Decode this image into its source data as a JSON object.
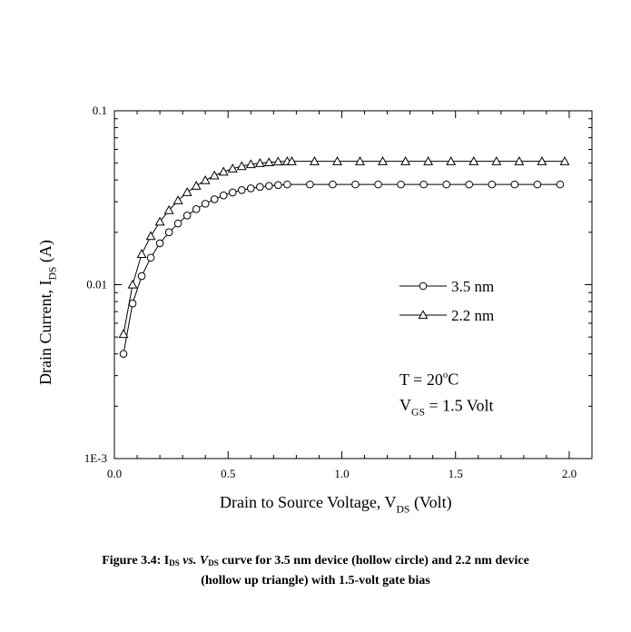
{
  "chart_data": {
    "type": "line",
    "title": "",
    "xlabel": {
      "main": "Drain to Source Voltage, V",
      "sub": "DS",
      "tail": " (Volt)"
    },
    "ylabel": {
      "main": "Drain Current, I",
      "sub": "DS",
      "tail": " (A)"
    },
    "xlim": [
      0,
      2.1
    ],
    "ylim": [
      0.001,
      0.1
    ],
    "yscale": "log",
    "x_ticks": [
      "0.0",
      "0.5",
      "1.0",
      "1.5",
      "2.0"
    ],
    "y_ticks": [
      "0.1",
      "0.01",
      "1E-3"
    ],
    "grid": false,
    "legend_position": "right-middle",
    "series": [
      {
        "name": "3.5 nm",
        "marker": "circle",
        "x": [
          0.04,
          0.08,
          0.12,
          0.16,
          0.2,
          0.24,
          0.28,
          0.32,
          0.36,
          0.4,
          0.44,
          0.48,
          0.52,
          0.56,
          0.6,
          0.64,
          0.68,
          0.72,
          0.76,
          0.86,
          0.96,
          1.06,
          1.16,
          1.26,
          1.36,
          1.46,
          1.56,
          1.66,
          1.76,
          1.86,
          1.96
        ],
        "y": [
          0.004,
          0.0078,
          0.0112,
          0.0143,
          0.0173,
          0.02,
          0.0225,
          0.025,
          0.0272,
          0.0292,
          0.031,
          0.0326,
          0.0339,
          0.035,
          0.0358,
          0.0365,
          0.037,
          0.0374,
          0.0377,
          0.0377,
          0.0377,
          0.0377,
          0.0377,
          0.0377,
          0.0377,
          0.0377,
          0.0377,
          0.0377,
          0.0377,
          0.0377,
          0.0377
        ]
      },
      {
        "name": "2.2 nm",
        "marker": "triangle",
        "x": [
          0.04,
          0.08,
          0.12,
          0.16,
          0.2,
          0.24,
          0.28,
          0.32,
          0.36,
          0.4,
          0.44,
          0.48,
          0.52,
          0.56,
          0.6,
          0.64,
          0.68,
          0.72,
          0.76,
          0.78,
          0.88,
          0.98,
          1.08,
          1.18,
          1.28,
          1.38,
          1.48,
          1.58,
          1.68,
          1.78,
          1.88,
          1.98
        ],
        "y": [
          0.0052,
          0.01,
          0.015,
          0.019,
          0.023,
          0.0268,
          0.0305,
          0.034,
          0.037,
          0.0398,
          0.0424,
          0.0446,
          0.0465,
          0.048,
          0.0492,
          0.05,
          0.0505,
          0.051,
          0.0512,
          0.0512,
          0.0512,
          0.0512,
          0.0512,
          0.0512,
          0.0512,
          0.0512,
          0.0512,
          0.0512,
          0.0512,
          0.0512,
          0.0512,
          0.0512
        ]
      }
    ],
    "annotations": [
      {
        "main": "T = 20",
        "sup": "o",
        "tail": "C"
      },
      {
        "main": "V",
        "sub": "GS",
        "tail": " = 1.5 Volt"
      }
    ]
  },
  "caption": {
    "line1": "Figure 3.4: I",
    "line1_sub1": "DS",
    "line1_mid": " vs. V",
    "line1_sub2": "DS",
    "line1_tail": " curve for 3.5 nm device (hollow circle) and 2.2 nm device",
    "line2": "(hollow up triangle) with 1.5-volt gate bias"
  }
}
